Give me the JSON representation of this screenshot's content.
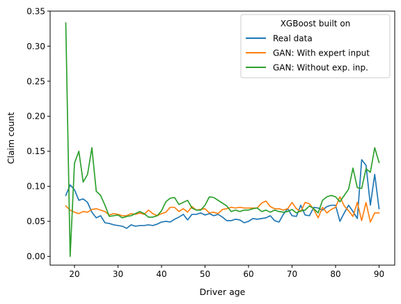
{
  "chart_data": {
    "type": "line",
    "title": "",
    "xlabel": "Driver age",
    "ylabel": "Claim count",
    "xlim": [
      14.4,
      93.6
    ],
    "ylim": [
      -0.0125,
      0.35
    ],
    "xticks": [
      20,
      30,
      40,
      50,
      60,
      70,
      80,
      90
    ],
    "xtick_labels": [
      "20",
      "30",
      "40",
      "50",
      "60",
      "70",
      "80",
      "90"
    ],
    "yticks": [
      0.0,
      0.05,
      0.1,
      0.15,
      0.2,
      0.25,
      0.3,
      0.35
    ],
    "ytick_labels": [
      "0.00",
      "0.05",
      "0.10",
      "0.15",
      "0.20",
      "0.25",
      "0.30",
      "0.35"
    ],
    "grid": false,
    "legend": {
      "title": "XGBoost built on",
      "position": "top-right"
    },
    "x": [
      18,
      19,
      20,
      21,
      22,
      23,
      24,
      25,
      26,
      27,
      28,
      29,
      30,
      31,
      32,
      33,
      34,
      35,
      36,
      37,
      38,
      39,
      40,
      41,
      42,
      43,
      44,
      45,
      46,
      47,
      48,
      49,
      50,
      51,
      52,
      53,
      54,
      55,
      56,
      57,
      58,
      59,
      60,
      61,
      62,
      63,
      64,
      65,
      66,
      67,
      68,
      69,
      70,
      71,
      72,
      73,
      74,
      75,
      76,
      77,
      78,
      79,
      80,
      81,
      82,
      83,
      84,
      85,
      86,
      87,
      88,
      89,
      90
    ],
    "series": [
      {
        "name": "Real data",
        "color": "#1f77b4",
        "values": [
          0.087,
          0.102,
          0.095,
          0.08,
          0.082,
          0.077,
          0.063,
          0.055,
          0.058,
          0.048,
          0.047,
          0.045,
          0.044,
          0.043,
          0.04,
          0.045,
          0.043,
          0.044,
          0.044,
          0.045,
          0.044,
          0.046,
          0.049,
          0.05,
          0.049,
          0.053,
          0.056,
          0.06,
          0.052,
          0.06,
          0.06,
          0.062,
          0.059,
          0.061,
          0.058,
          0.06,
          0.056,
          0.051,
          0.051,
          0.053,
          0.052,
          0.048,
          0.05,
          0.054,
          0.053,
          0.054,
          0.055,
          0.058,
          0.051,
          0.049,
          0.06,
          0.068,
          0.058,
          0.057,
          0.073,
          0.059,
          0.058,
          0.07,
          0.069,
          0.066,
          0.071,
          0.073,
          0.073,
          0.05,
          0.062,
          0.073,
          0.064,
          0.054,
          0.138,
          0.13,
          0.073,
          0.117,
          0.068
        ]
      },
      {
        "name": "GAN: With expert input",
        "color": "#ff7f0e",
        "values": [
          0.072,
          0.066,
          0.063,
          0.061,
          0.064,
          0.063,
          0.067,
          0.068,
          0.066,
          0.064,
          0.059,
          0.061,
          0.06,
          0.058,
          0.058,
          0.061,
          0.06,
          0.062,
          0.06,
          0.066,
          0.061,
          0.058,
          0.061,
          0.063,
          0.07,
          0.07,
          0.064,
          0.068,
          0.063,
          0.071,
          0.066,
          0.067,
          0.068,
          0.062,
          0.063,
          0.061,
          0.067,
          0.068,
          0.07,
          0.069,
          0.07,
          0.069,
          0.069,
          0.069,
          0.069,
          0.076,
          0.079,
          0.071,
          0.068,
          0.068,
          0.066,
          0.068,
          0.077,
          0.068,
          0.064,
          0.077,
          0.075,
          0.067,
          0.055,
          0.07,
          0.062,
          0.067,
          0.07,
          0.085,
          0.072,
          0.065,
          0.057,
          0.077,
          0.051,
          0.077,
          0.049,
          0.062,
          0.062
        ]
      },
      {
        "name": "GAN: Without exp. inp.",
        "color": "#2ca02c",
        "values": [
          0.333,
          0.0,
          0.133,
          0.15,
          0.106,
          0.117,
          0.155,
          0.093,
          0.087,
          0.073,
          0.057,
          0.058,
          0.059,
          0.055,
          0.057,
          0.058,
          0.061,
          0.064,
          0.061,
          0.056,
          0.056,
          0.058,
          0.065,
          0.078,
          0.083,
          0.084,
          0.074,
          0.077,
          0.08,
          0.069,
          0.066,
          0.066,
          0.073,
          0.085,
          0.084,
          0.08,
          0.076,
          0.072,
          0.064,
          0.066,
          0.064,
          0.066,
          0.066,
          0.068,
          0.069,
          0.064,
          0.066,
          0.063,
          0.066,
          0.064,
          0.063,
          0.064,
          0.067,
          0.062,
          0.065,
          0.066,
          0.072,
          0.068,
          0.062,
          0.08,
          0.085,
          0.087,
          0.085,
          0.078,
          0.087,
          0.096,
          0.126,
          0.098,
          0.097,
          0.125,
          0.12,
          0.155,
          0.134
        ]
      }
    ]
  }
}
